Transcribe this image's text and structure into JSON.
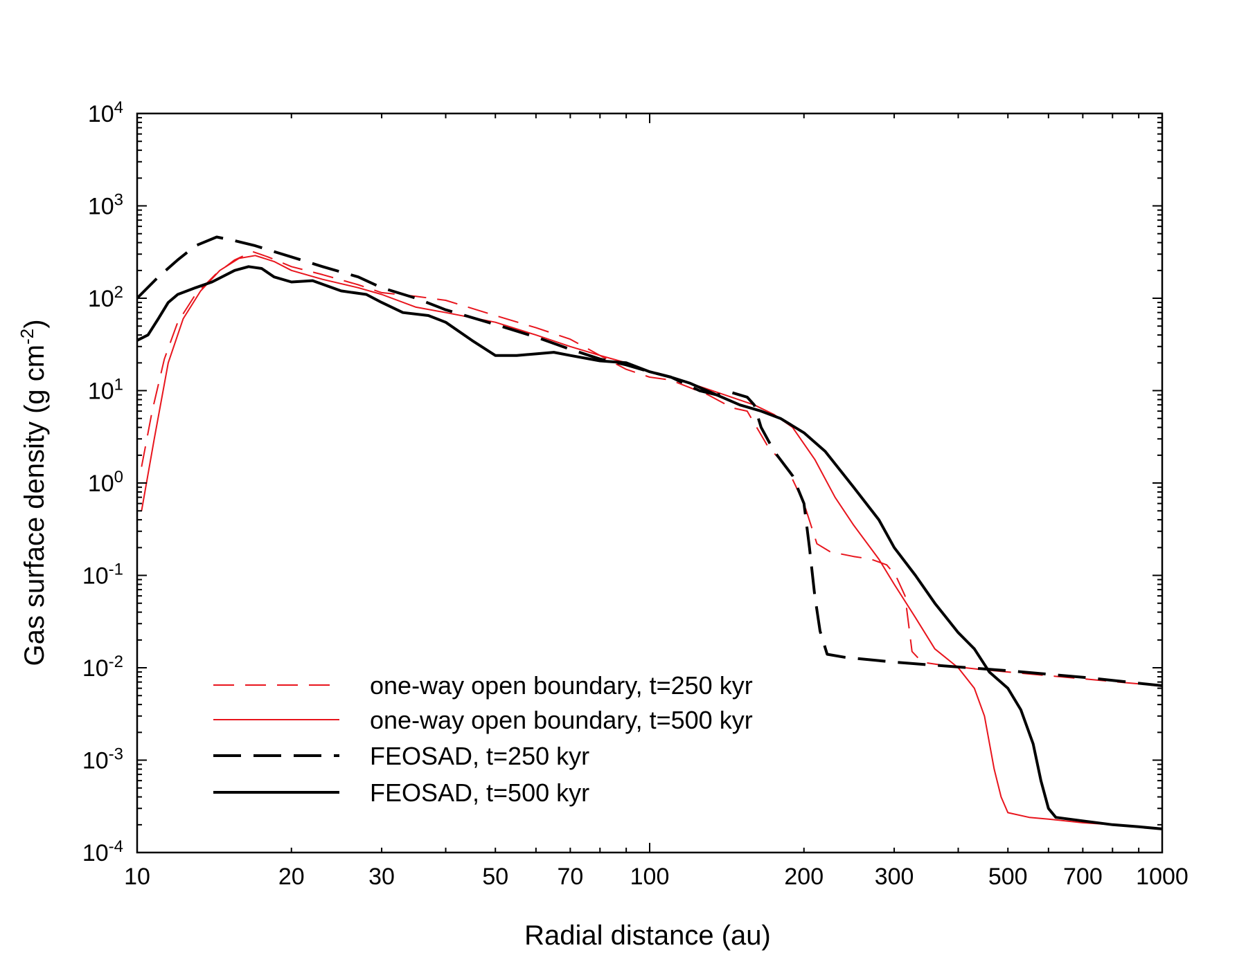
{
  "chart_data": {
    "type": "line",
    "title": "",
    "xlabel": "Radial distance (au)",
    "ylabel_main": "Gas surface density (g cm",
    "ylabel_sup": "-2",
    "ylabel_close": ")",
    "xscale": "log",
    "yscale": "log",
    "xlim": [
      10,
      1000
    ],
    "ylim": [
      0.0001,
      10000
    ],
    "x_ticks": [
      {
        "value": 10,
        "label": "10"
      },
      {
        "value": 20,
        "label": "20"
      },
      {
        "value": 30,
        "label": "30"
      },
      {
        "value": 50,
        "label": "50"
      },
      {
        "value": 70,
        "label": "70"
      },
      {
        "value": 100,
        "label": "100"
      },
      {
        "value": 200,
        "label": "200"
      },
      {
        "value": 300,
        "label": "300"
      },
      {
        "value": 500,
        "label": "500"
      },
      {
        "value": 700,
        "label": "700"
      },
      {
        "value": 1000,
        "label": "1000"
      }
    ],
    "y_ticks": [
      {
        "value": 0.0001,
        "base": "10",
        "exp": "-4"
      },
      {
        "value": 0.001,
        "base": "10",
        "exp": "-3"
      },
      {
        "value": 0.01,
        "base": "10",
        "exp": "-2"
      },
      {
        "value": 0.1,
        "base": "10",
        "exp": "-1"
      },
      {
        "value": 1,
        "base": "10",
        "exp": "0"
      },
      {
        "value": 10,
        "base": "10",
        "exp": "1"
      },
      {
        "value": 100,
        "base": "10",
        "exp": "2"
      },
      {
        "value": 1000,
        "base": "10",
        "exp": "3"
      },
      {
        "value": 10000,
        "base": "10",
        "exp": "4"
      }
    ],
    "legend_position": "bottom-left",
    "series": [
      {
        "name": "one-way open boundary, t=250 kyr",
        "color": "#e8141c",
        "style": "dashed",
        "x": [
          10.2,
          10.7,
          11.3,
          12.0,
          13.0,
          14.2,
          15.5,
          16.8,
          18.0,
          20.0,
          23.0,
          27.0,
          30.0,
          35.0,
          40.0,
          50.0,
          60.0,
          70.0,
          80.0,
          90.0,
          100.0,
          110.0,
          130.0,
          145.0,
          155.0,
          170.0,
          185.0,
          200.0,
          212.0,
          225.0,
          250.0,
          270.0,
          290.0,
          302.0,
          315.0,
          325.0,
          340.0,
          380.0,
          450.0,
          500.0,
          600.0,
          700.0,
          800.0,
          900.0,
          1000.0
        ],
        "y": [
          1.5,
          6.0,
          22.0,
          55.0,
          110.0,
          180.0,
          260.0,
          320.0,
          280.0,
          220.0,
          180.0,
          140.0,
          115.0,
          105.0,
          95.0,
          65.0,
          48.0,
          36.0,
          24.0,
          17.0,
          14.0,
          13.0,
          9.0,
          6.5,
          6.0,
          2.5,
          1.5,
          0.6,
          0.22,
          0.18,
          0.16,
          0.15,
          0.13,
          0.1,
          0.06,
          0.015,
          0.0115,
          0.0105,
          0.0095,
          0.009,
          0.0082,
          0.0076,
          0.0071,
          0.0067,
          0.0063
        ]
      },
      {
        "name": "one-way open boundary, t=500 kyr",
        "color": "#e8141c",
        "style": "solid",
        "x": [
          10.2,
          10.8,
          11.5,
          12.3,
          13.3,
          14.5,
          15.8,
          17.0,
          18.5,
          20.0,
          23.0,
          27.0,
          30.0,
          35.0,
          40.0,
          50.0,
          60.0,
          70.0,
          80.0,
          90.0,
          100.0,
          120.0,
          140.0,
          160.0,
          175.0,
          190.0,
          210.0,
          230.0,
          250.0,
          280.0,
          300.0,
          330.0,
          360.0,
          400.0,
          430.0,
          450.0,
          470.0,
          485.0,
          500.0,
          550.0,
          600.0,
          700.0,
          800.0,
          900.0,
          1000.0
        ],
        "y": [
          0.5,
          3.0,
          20.0,
          60.0,
          120.0,
          200.0,
          270.0,
          290.0,
          250.0,
          200.0,
          160.0,
          130.0,
          110.0,
          80.0,
          70.0,
          55.0,
          40.0,
          30.0,
          24.0,
          20.0,
          16.0,
          12.0,
          9.0,
          7.0,
          5.5,
          4.0,
          1.8,
          0.7,
          0.35,
          0.15,
          0.08,
          0.035,
          0.016,
          0.01,
          0.006,
          0.003,
          0.0008,
          0.0004,
          0.00027,
          0.00024,
          0.00023,
          0.00021,
          0.0002,
          0.00019,
          0.00018
        ]
      },
      {
        "name": "FEOSAD, t=250 kyr",
        "color": "#000000",
        "style": "dashed",
        "x": [
          10.0,
          11.0,
          12.0,
          13.0,
          14.3,
          15.5,
          17.0,
          18.5,
          20.0,
          23.0,
          27.0,
          30.0,
          35.0,
          40.0,
          50.0,
          60.0,
          70.0,
          80.0,
          90.0,
          100.0,
          110.0,
          125.0,
          135.0,
          145.0,
          155.0,
          160.0,
          165.0,
          175.0,
          190.0,
          200.0,
          205.0,
          210.0,
          215.0,
          222.0,
          240.0,
          300.0,
          400.0,
          500.0,
          600.0,
          700.0,
          800.0,
          900.0,
          1000.0
        ],
        "y": [
          100.0,
          170.0,
          260.0,
          370.0,
          460.0,
          420.0,
          370.0,
          320.0,
          280.0,
          220.0,
          170.0,
          130.0,
          100.0,
          75.0,
          52.0,
          38.0,
          28.0,
          22.0,
          19.0,
          16.0,
          14.0,
          10.0,
          9.0,
          9.5,
          8.5,
          7.0,
          4.0,
          2.2,
          1.2,
          0.6,
          0.2,
          0.06,
          0.025,
          0.014,
          0.013,
          0.0115,
          0.0102,
          0.0093,
          0.0085,
          0.0079,
          0.0073,
          0.0068,
          0.0064
        ]
      },
      {
        "name": "FEOSAD, t=500 kyr",
        "color": "#000000",
        "style": "solid",
        "x": [
          10.0,
          10.5,
          11.0,
          11.5,
          12.0,
          13.0,
          14.0,
          15.5,
          16.5,
          17.5,
          18.5,
          20.0,
          22.0,
          25.0,
          28.0,
          30.0,
          33.0,
          37.0,
          40.0,
          45.0,
          50.0,
          55.0,
          60.0,
          65.0,
          70.0,
          80.0,
          90.0,
          100.0,
          110.0,
          120.0,
          135.0,
          150.0,
          165.0,
          180.0,
          200.0,
          220.0,
          250.0,
          280.0,
          300.0,
          330.0,
          360.0,
          400.0,
          430.0,
          460.0,
          500.0,
          530.0,
          560.0,
          580.0,
          600.0,
          620.0,
          700.0,
          800.0,
          900.0,
          1000.0
        ],
        "y": [
          35.0,
          40.0,
          60.0,
          90.0,
          110.0,
          130.0,
          150.0,
          200.0,
          220.0,
          210.0,
          170.0,
          150.0,
          155.0,
          120.0,
          110.0,
          90.0,
          70.0,
          65.0,
          55.0,
          35.0,
          24.0,
          24.0,
          25.0,
          26.0,
          24.0,
          21.0,
          20.0,
          16.0,
          14.0,
          12.0,
          9.0,
          7.0,
          6.0,
          5.0,
          3.5,
          2.2,
          0.9,
          0.4,
          0.2,
          0.1,
          0.05,
          0.024,
          0.016,
          0.009,
          0.006,
          0.0035,
          0.0015,
          0.0006,
          0.0003,
          0.00024,
          0.00022,
          0.0002,
          0.00019,
          0.00018
        ]
      }
    ]
  }
}
